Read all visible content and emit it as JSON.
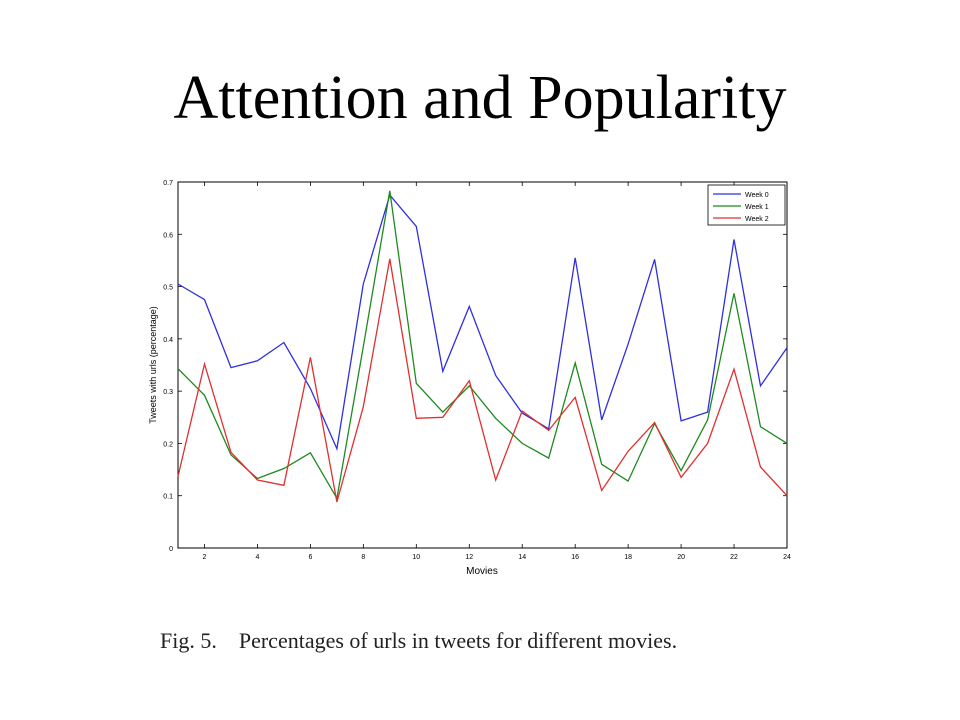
{
  "slide": {
    "title": "Attention and Popularity"
  },
  "caption": {
    "label": "Fig. 5.",
    "text": "Percentages of urls in tweets for different movies."
  },
  "colors": {
    "week0": "#2f2fe0",
    "week1": "#1f8a1f",
    "week2": "#e03030",
    "axis": "#000000"
  },
  "chart_data": {
    "type": "line",
    "title": "",
    "xlabel": "Movies",
    "ylabel": "Tweets with urls (percentage)",
    "xlim": [
      1,
      24
    ],
    "ylim": [
      0,
      0.7
    ],
    "xticks": [
      2,
      4,
      6,
      8,
      10,
      12,
      14,
      16,
      18,
      20,
      22,
      24
    ],
    "yticks": [
      0,
      0.1,
      0.2,
      0.3,
      0.4,
      0.5,
      0.6,
      0.7
    ],
    "ytick_labels": [
      "0",
      "0.1",
      "0.2",
      "0.3",
      "0.4",
      "0.5",
      "0.6",
      "0.7"
    ],
    "grid": false,
    "legend_position": "top-right",
    "x": [
      1,
      2,
      3,
      4,
      5,
      6,
      7,
      8,
      9,
      10,
      11,
      12,
      13,
      14,
      15,
      16,
      17,
      18,
      19,
      20,
      21,
      22,
      23,
      24
    ],
    "series": [
      {
        "name": "Week 0",
        "color": "#2f2fe0",
        "values": [
          0.505,
          0.475,
          0.345,
          0.358,
          0.393,
          0.305,
          0.19,
          0.505,
          0.675,
          0.615,
          0.338,
          0.462,
          0.33,
          0.258,
          0.228,
          0.555,
          0.245,
          0.39,
          0.552,
          0.243,
          0.26,
          0.59,
          0.31,
          0.383
        ]
      },
      {
        "name": "Week 1",
        "color": "#1f8a1f",
        "values": [
          0.343,
          0.292,
          0.178,
          0.133,
          0.152,
          0.182,
          0.095,
          0.385,
          0.683,
          0.315,
          0.26,
          0.31,
          0.248,
          0.2,
          0.172,
          0.354,
          0.16,
          0.128,
          0.238,
          0.148,
          0.245,
          0.487,
          0.232,
          0.2
        ]
      },
      {
        "name": "Week 2",
        "color": "#e03030",
        "values": [
          0.137,
          0.352,
          0.183,
          0.13,
          0.12,
          0.365,
          0.088,
          0.27,
          0.553,
          0.248,
          0.25,
          0.32,
          0.13,
          0.262,
          0.225,
          0.288,
          0.11,
          0.185,
          0.24,
          0.135,
          0.2,
          0.342,
          0.155,
          0.1
        ]
      }
    ]
  }
}
